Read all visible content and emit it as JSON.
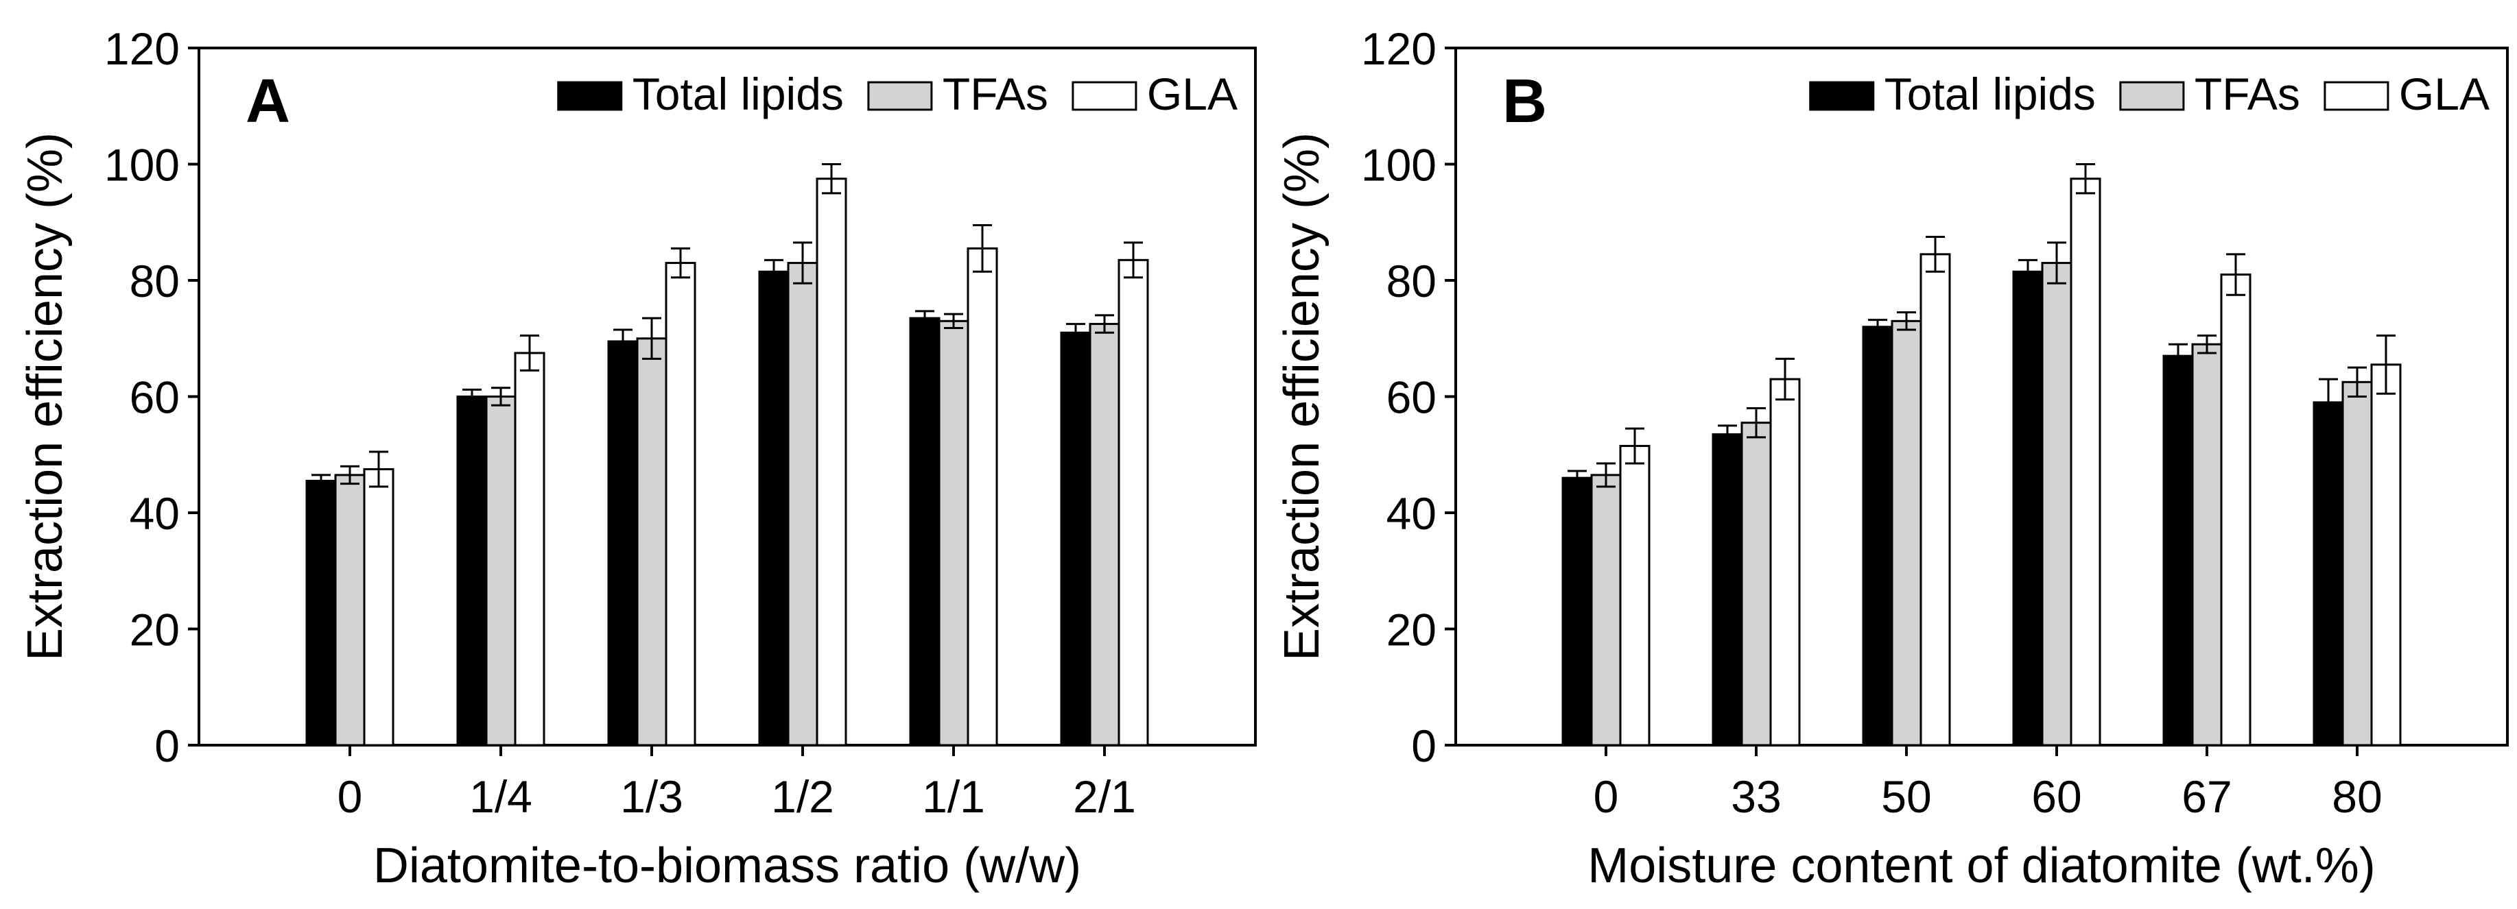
{
  "chart_data": [
    {
      "type": "bar",
      "panel_label": "A",
      "categories": [
        "0",
        "1/4",
        "1/3",
        "1/2",
        "1/1",
        "2/1"
      ],
      "series": [
        {
          "name": "Total lipids",
          "values": [
            45.5,
            60.0,
            69.5,
            81.5,
            73.5,
            71.0
          ],
          "errors": [
            1.0,
            1.2,
            2.0,
            2.0,
            1.2,
            1.5
          ]
        },
        {
          "name": "TFAs",
          "values": [
            46.5,
            60.0,
            70.0,
            83.0,
            73.0,
            72.5
          ],
          "errors": [
            1.5,
            1.5,
            3.5,
            3.5,
            1.2,
            1.5
          ]
        },
        {
          "name": "GLA",
          "values": [
            47.5,
            67.5,
            83.0,
            97.5,
            85.5,
            83.5
          ],
          "errors": [
            3.0,
            3.0,
            2.5,
            2.5,
            4.0,
            3.0
          ]
        }
      ],
      "xlabel": "Diatomite-to-biomass ratio (w/w)",
      "ylabel": "Extraction efficiency (%)",
      "ylim": [
        0,
        120
      ],
      "yticks": [
        "0",
        "20",
        "40",
        "60",
        "80",
        "100",
        "120"
      ],
      "legend_position": "top-right",
      "grid": false
    },
    {
      "type": "bar",
      "panel_label": "B",
      "categories": [
        "0",
        "33",
        "50",
        "60",
        "67",
        "80"
      ],
      "series": [
        {
          "name": "Total lipids",
          "values": [
            46.0,
            53.5,
            72.0,
            81.5,
            67.0,
            59.0
          ],
          "errors": [
            1.2,
            1.5,
            1.2,
            2.0,
            2.0,
            4.0
          ]
        },
        {
          "name": "TFAs",
          "values": [
            46.5,
            55.5,
            73.0,
            83.0,
            69.0,
            62.5
          ],
          "errors": [
            2.0,
            2.5,
            1.5,
            3.5,
            1.5,
            2.5
          ]
        },
        {
          "name": "GLA",
          "values": [
            51.5,
            63.0,
            84.5,
            97.5,
            81.0,
            65.5
          ],
          "errors": [
            3.0,
            3.5,
            3.0,
            2.5,
            3.5,
            5.0
          ]
        }
      ],
      "xlabel": "Moisture content of diatomite (wt.%)",
      "ylabel": "Extraction efficiency (%)",
      "ylim": [
        0,
        120
      ],
      "yticks": [
        "0",
        "20",
        "40",
        "60",
        "80",
        "100",
        "120"
      ],
      "legend_position": "top-right",
      "grid": false
    }
  ],
  "colors": {
    "Total lipids": "#000000",
    "TFAs": "#d3d3d3",
    "GLA": "#ffffff",
    "stroke": "#000000"
  }
}
